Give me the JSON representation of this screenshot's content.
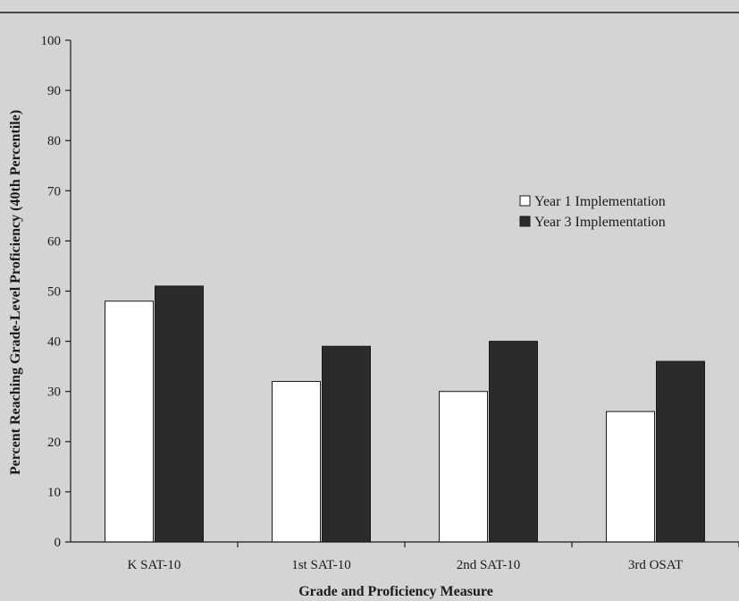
{
  "chart_data": {
    "type": "bar",
    "title": "",
    "xlabel": "Grade and Proficiency Measure",
    "ylabel": "Percent Reaching Grade-Level Proficiency (40th Percentile)",
    "ylim": [
      0,
      100
    ],
    "yticks": [
      "0",
      "10",
      "20",
      "30",
      "40",
      "50",
      "60",
      "70",
      "80",
      "90",
      "100"
    ],
    "categories": [
      "K SAT-10",
      "1st SAT-10",
      "2nd SAT-10",
      "3rd OSAT"
    ],
    "series": [
      {
        "name": "Year 1 Implementation",
        "values": [
          48,
          32,
          30,
          26
        ],
        "color": "#ffffff"
      },
      {
        "name": "Year 3 Implementation",
        "values": [
          51,
          39,
          40,
          36
        ],
        "color": "#2b2b2b"
      }
    ],
    "grid": false,
    "legend": "right"
  }
}
